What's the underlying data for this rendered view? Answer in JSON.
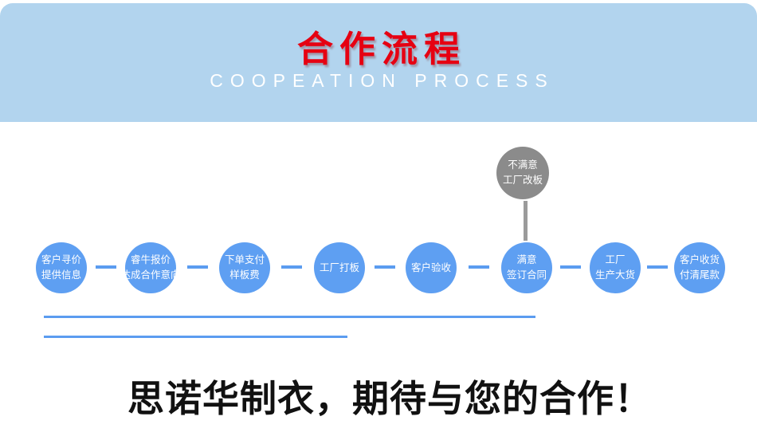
{
  "header": {
    "title": "合作流程",
    "subtitle": "COOPEATION PROCESS"
  },
  "steps": [
    {
      "line1": "客户寻价",
      "line2": "提供信息"
    },
    {
      "line1": "睿牛报价",
      "line2": "达成合作意向"
    },
    {
      "line1": "下单支付",
      "line2": "样板费"
    },
    {
      "line1": "工厂打板",
      "line2": ""
    },
    {
      "line1": "客户验收",
      "line2": ""
    },
    {
      "line1": "满意",
      "line2": "签订合同"
    },
    {
      "line1": "工厂",
      "line2": "生产大货"
    },
    {
      "line1": "客户收货",
      "line2": "付清尾款"
    }
  ],
  "rework": {
    "line1": "不满意",
    "line2": "工厂改板"
  },
  "tagline": "思诺华制衣，期待与您的合作！",
  "colors": {
    "banner": "#b2d4ee",
    "title": "#e60012",
    "subtitle": "#ffffff",
    "step": "#5e9ff2",
    "steptext": "#ffffff",
    "rework": "#8b8b8b",
    "reworkline": "#9b9b9b",
    "line": "#5b9cf0",
    "tagline": "#111111"
  }
}
